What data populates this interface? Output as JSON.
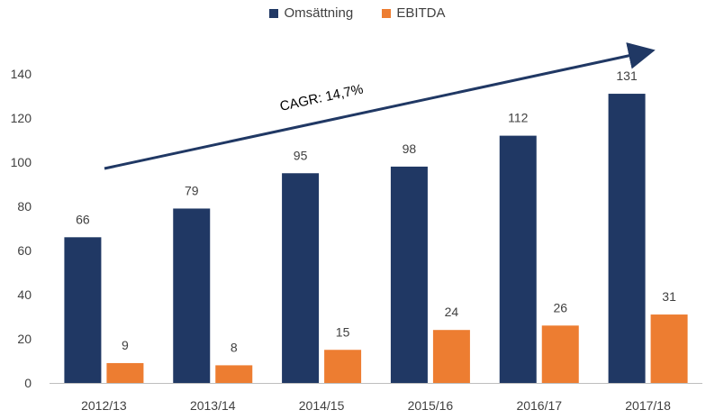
{
  "chart_data": {
    "type": "bar",
    "categories": [
      "2012/13",
      "2013/14",
      "2014/15",
      "2015/16",
      "2016/17",
      "2017/18"
    ],
    "series": [
      {
        "name": "Omsättning",
        "color": "#203864",
        "values": [
          66,
          79,
          95,
          98,
          112,
          131
        ]
      },
      {
        "name": "EBITDA",
        "color": "#ED7D31",
        "values": [
          9,
          8,
          15,
          24,
          26,
          31
        ]
      }
    ],
    "ylim": [
      0,
      140
    ],
    "yticks": [
      0,
      20,
      40,
      60,
      80,
      100,
      120,
      140
    ],
    "grid": false,
    "legend_position": "top-center",
    "annotation": {
      "text": "CAGR: 14,7%",
      "arrow": "trend arrow rising left to right"
    }
  }
}
